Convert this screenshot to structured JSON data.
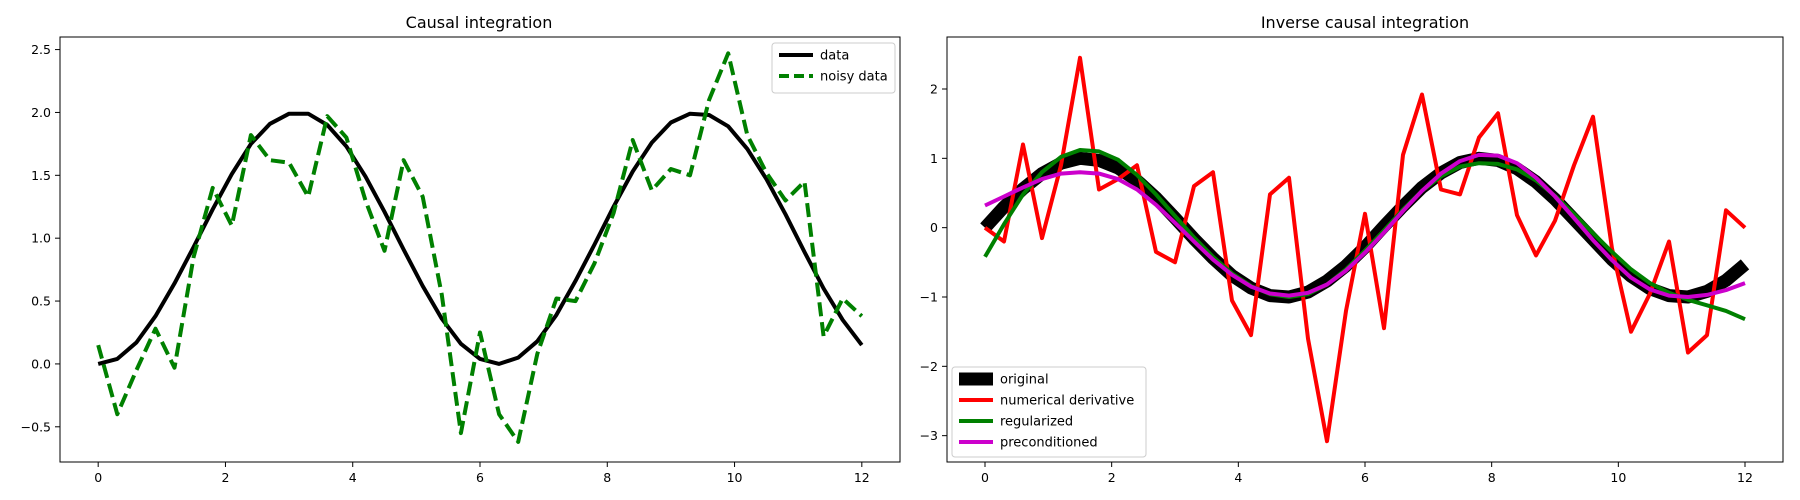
{
  "chart_data": [
    {
      "type": "line",
      "title": "Causal integration",
      "xlabel": "",
      "ylabel": "",
      "xlim": [
        -0.6,
        12.6
      ],
      "ylim": [
        -0.78,
        2.6
      ],
      "xticks": [
        0,
        2,
        4,
        6,
        8,
        10,
        12
      ],
      "yticks": [
        -0.5,
        0.0,
        0.5,
        1.0,
        1.5,
        2.0,
        2.5
      ],
      "ytick_labels": [
        "−0.5",
        "0.0",
        "0.5",
        "1.0",
        "1.5",
        "2.0",
        "2.5"
      ],
      "grid": false,
      "legend_position": "top-right",
      "series": [
        {
          "name": "data",
          "color": "#000000",
          "style": "solid",
          "x": [
            0,
            0.3,
            0.6,
            0.9,
            1.2,
            1.5,
            1.8,
            2.1,
            2.4,
            2.7,
            3.0,
            3.3,
            3.6,
            3.9,
            4.2,
            4.5,
            4.8,
            5.1,
            5.4,
            5.7,
            6.0,
            6.3,
            6.6,
            6.9,
            7.2,
            7.5,
            7.8,
            8.1,
            8.4,
            8.7,
            9.0,
            9.3,
            9.6,
            9.9,
            10.2,
            10.5,
            10.8,
            11.1,
            11.4,
            11.7,
            12.0
          ],
          "values": [
            0.0,
            0.04,
            0.17,
            0.38,
            0.64,
            0.93,
            1.23,
            1.51,
            1.75,
            1.91,
            1.99,
            1.99,
            1.9,
            1.73,
            1.49,
            1.21,
            0.91,
            0.62,
            0.36,
            0.16,
            0.04,
            0.0,
            0.05,
            0.18,
            0.39,
            0.66,
            0.95,
            1.25,
            1.53,
            1.76,
            1.92,
            1.99,
            1.98,
            1.89,
            1.71,
            1.47,
            1.19,
            0.89,
            0.6,
            0.35,
            0.15
          ]
        },
        {
          "name": "noisy data",
          "color": "#008000",
          "style": "dashed",
          "x": [
            0,
            0.3,
            0.6,
            0.9,
            1.2,
            1.5,
            1.8,
            2.1,
            2.4,
            2.7,
            3.0,
            3.3,
            3.6,
            3.9,
            4.2,
            4.5,
            4.8,
            5.1,
            5.4,
            5.7,
            6.0,
            6.3,
            6.6,
            6.9,
            7.2,
            7.5,
            7.8,
            8.1,
            8.4,
            8.7,
            9.0,
            9.3,
            9.6,
            9.9,
            10.2,
            10.5,
            10.8,
            11.1,
            11.4,
            11.7,
            12.0
          ],
          "values": [
            0.15,
            -0.4,
            -0.05,
            0.28,
            -0.03,
            0.85,
            1.4,
            1.1,
            1.82,
            1.62,
            1.6,
            1.33,
            1.97,
            1.8,
            1.3,
            0.9,
            1.62,
            1.33,
            0.55,
            -0.55,
            0.25,
            -0.4,
            -0.62,
            0.08,
            0.52,
            0.5,
            0.8,
            1.2,
            1.78,
            1.38,
            1.55,
            1.5,
            2.1,
            2.47,
            1.82,
            1.52,
            1.3,
            1.45,
            0.22,
            0.52,
            0.38
          ]
        }
      ]
    },
    {
      "type": "line",
      "title": "Inverse causal integration",
      "xlabel": "",
      "ylabel": "",
      "xlim": [
        -0.6,
        12.6
      ],
      "ylim": [
        -3.38,
        2.75
      ],
      "xticks": [
        0,
        2,
        4,
        6,
        8,
        10,
        12
      ],
      "yticks": [
        -3,
        -2,
        -1,
        0,
        1,
        2
      ],
      "ytick_labels": [
        "−3",
        "−2",
        "−1",
        "0",
        "1",
        "2"
      ],
      "grid": false,
      "legend_position": "bottom-left",
      "series": [
        {
          "name": "original",
          "color": "#000000",
          "style": "solid-thick",
          "x": [
            0,
            0.3,
            0.6,
            0.9,
            1.2,
            1.5,
            1.8,
            2.1,
            2.4,
            2.7,
            3.0,
            3.3,
            3.6,
            3.9,
            4.2,
            4.5,
            4.8,
            5.1,
            5.4,
            5.7,
            6.0,
            6.3,
            6.6,
            6.9,
            7.2,
            7.5,
            7.8,
            8.1,
            8.4,
            8.7,
            9.0,
            9.3,
            9.6,
            9.9,
            10.2,
            10.5,
            10.8,
            11.1,
            11.4,
            11.7,
            12.0
          ],
          "values": [
            0.0,
            0.3,
            0.56,
            0.78,
            0.93,
            1.0,
            0.97,
            0.86,
            0.68,
            0.43,
            0.14,
            -0.16,
            -0.44,
            -0.69,
            -0.87,
            -0.98,
            -1.0,
            -0.93,
            -0.77,
            -0.55,
            -0.28,
            0.02,
            0.31,
            0.58,
            0.79,
            0.94,
            1.0,
            0.97,
            0.85,
            0.66,
            0.41,
            0.12,
            -0.17,
            -0.46,
            -0.7,
            -0.88,
            -0.98,
            -1.0,
            -0.92,
            -0.76,
            -0.53
          ]
        },
        {
          "name": "numerical derivative",
          "color": "#ff0000",
          "style": "solid",
          "x": [
            0,
            0.3,
            0.6,
            0.9,
            1.2,
            1.5,
            1.8,
            2.1,
            2.4,
            2.7,
            3.0,
            3.3,
            3.6,
            3.9,
            4.2,
            4.5,
            4.8,
            5.1,
            5.4,
            5.7,
            6.0,
            6.3,
            6.6,
            6.9,
            7.2,
            7.5,
            7.8,
            8.1,
            8.4,
            8.7,
            9.0,
            9.3,
            9.6,
            9.9,
            10.2,
            10.5,
            10.8,
            11.1,
            11.4,
            11.7,
            12.0
          ],
          "values": [
            0.0,
            -0.2,
            1.2,
            -0.15,
            0.9,
            2.45,
            0.55,
            0.7,
            0.9,
            -0.35,
            -0.5,
            0.6,
            0.8,
            -1.05,
            -1.55,
            0.48,
            0.72,
            -1.6,
            -3.08,
            -1.2,
            0.2,
            -1.45,
            1.05,
            1.92,
            0.55,
            0.48,
            1.3,
            1.65,
            0.18,
            -0.4,
            0.1,
            0.9,
            1.6,
            -0.3,
            -1.5,
            -0.95,
            -0.2,
            -1.8,
            -1.55,
            0.25,
            0.0
          ]
        },
        {
          "name": "regularized",
          "color": "#008000",
          "style": "solid",
          "x": [
            0,
            0.3,
            0.6,
            0.9,
            1.2,
            1.5,
            1.8,
            2.1,
            2.4,
            2.7,
            3.0,
            3.3,
            3.6,
            3.9,
            4.2,
            4.5,
            4.8,
            5.1,
            5.4,
            5.7,
            6.0,
            6.3,
            6.6,
            6.9,
            7.2,
            7.5,
            7.8,
            8.1,
            8.4,
            8.7,
            9.0,
            9.3,
            9.6,
            9.9,
            10.2,
            10.5,
            10.8,
            11.1,
            11.4,
            11.7,
            12.0
          ],
          "values": [
            -0.42,
            0.05,
            0.48,
            0.8,
            1.02,
            1.12,
            1.1,
            0.98,
            0.76,
            0.48,
            0.17,
            -0.14,
            -0.42,
            -0.66,
            -0.84,
            -0.96,
            -1.0,
            -0.96,
            -0.82,
            -0.6,
            -0.33,
            -0.04,
            0.26,
            0.53,
            0.74,
            0.88,
            0.93,
            0.92,
            0.84,
            0.68,
            0.46,
            0.2,
            -0.08,
            -0.35,
            -0.6,
            -0.8,
            -0.94,
            -1.04,
            -1.12,
            -1.2,
            -1.32
          ]
        },
        {
          "name": "preconditioned",
          "color": "#cc00cc",
          "style": "solid",
          "x": [
            0,
            0.3,
            0.6,
            0.9,
            1.2,
            1.5,
            1.8,
            2.1,
            2.4,
            2.7,
            3.0,
            3.3,
            3.6,
            3.9,
            4.2,
            4.5,
            4.8,
            5.1,
            5.4,
            5.7,
            6.0,
            6.3,
            6.6,
            6.9,
            7.2,
            7.5,
            7.8,
            8.1,
            8.4,
            8.7,
            9.0,
            9.3,
            9.6,
            9.9,
            10.2,
            10.5,
            10.8,
            11.1,
            11.4,
            11.7,
            12.0
          ],
          "values": [
            0.32,
            0.45,
            0.58,
            0.7,
            0.78,
            0.8,
            0.78,
            0.7,
            0.55,
            0.33,
            0.07,
            -0.2,
            -0.46,
            -0.68,
            -0.85,
            -0.95,
            -0.98,
            -0.94,
            -0.82,
            -0.62,
            -0.36,
            -0.07,
            0.24,
            0.53,
            0.78,
            0.96,
            1.05,
            1.04,
            0.93,
            0.72,
            0.45,
            0.14,
            -0.18,
            -0.47,
            -0.72,
            -0.89,
            -0.98,
            -1.0,
            -0.97,
            -0.9,
            -0.8
          ]
        }
      ]
    }
  ]
}
